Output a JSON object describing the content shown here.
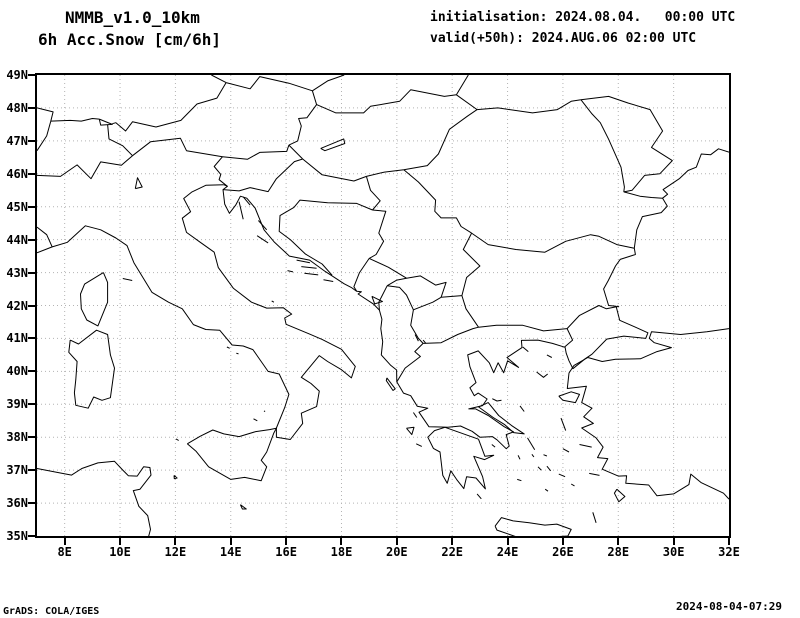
{
  "header": {
    "title_line1": "NMMB_v1.0_10km",
    "title_line2": "6h Acc.Snow [cm/6h]",
    "init_label": "initialisation: 2024.08.04.   00:00 UTC",
    "valid_label": "valid(+50h): 2024.AUG.06 02:00 UTC"
  },
  "map": {
    "lat_min": 35,
    "lat_max": 49,
    "lon_min": 7,
    "lon_max": 32,
    "lat_tick_step": 1,
    "lon_tick_step": 2,
    "lat_tick_labels": [
      "35N",
      "36N",
      "37N",
      "38N",
      "39N",
      "40N",
      "41N",
      "42N",
      "43N",
      "44N",
      "45N",
      "46N",
      "47N",
      "48N",
      "49N"
    ],
    "lon_tick_labels": [
      "8E",
      "10E",
      "12E",
      "14E",
      "16E",
      "18E",
      "20E",
      "22E",
      "24E",
      "26E",
      "28E",
      "30E",
      "32E"
    ],
    "grid_color": "#b3b3b3",
    "line_color": "#000000",
    "frame_color": "#000000",
    "background": "#ffffff"
  },
  "footer": {
    "credit": "GrADS: COLA/IGES",
    "timestamp": "2024-08-04-07:29"
  }
}
